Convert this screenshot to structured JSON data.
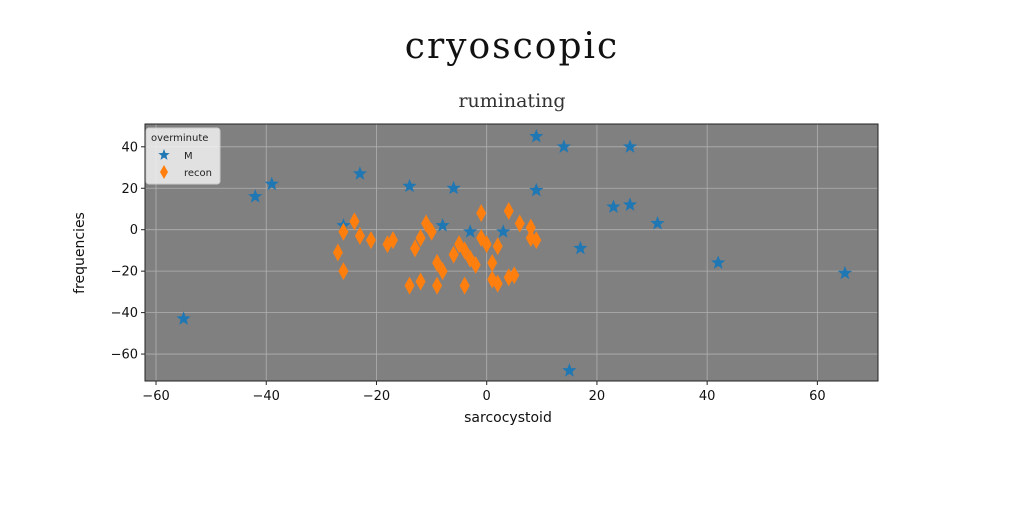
{
  "chart_data": {
    "type": "scatter",
    "suptitle": "cryoscopic",
    "title": "ruminating",
    "xlabel": "sarcocystoid",
    "ylabel": "frequencies",
    "xlim": [
      -62,
      71
    ],
    "ylim": [
      -73,
      51
    ],
    "xticks": [
      -60,
      -40,
      -20,
      0,
      20,
      40,
      60
    ],
    "yticks": [
      -60,
      -40,
      -20,
      0,
      20,
      40
    ],
    "grid": true,
    "legend": {
      "title": "overminute",
      "placement": "upper-left"
    },
    "colors": {
      "M": "#1f77b4",
      "recon": "#ff7f0e",
      "axes_bg": "#808080",
      "grid": "#b0b0b0"
    },
    "series": [
      {
        "name": "M",
        "marker": "star",
        "points": [
          [
            -55,
            -43
          ],
          [
            -42,
            16
          ],
          [
            -39,
            22
          ],
          [
            -23,
            27
          ],
          [
            -14,
            21
          ],
          [
            -6,
            20
          ],
          [
            -26,
            2
          ],
          [
            -8,
            2
          ],
          [
            -3,
            -1
          ],
          [
            3,
            -1
          ],
          [
            9,
            45
          ],
          [
            14,
            40
          ],
          [
            9,
            19
          ],
          [
            17,
            -9
          ],
          [
            23,
            11
          ],
          [
            26,
            12
          ],
          [
            26,
            40
          ],
          [
            31,
            3
          ],
          [
            42,
            -16
          ],
          [
            65,
            -21
          ],
          [
            15,
            -68
          ]
        ]
      },
      {
        "name": "recon",
        "marker": "thin_diamond",
        "points": [
          [
            -27,
            -11
          ],
          [
            -26,
            -20
          ],
          [
            -26,
            -1
          ],
          [
            -24,
            4
          ],
          [
            -23,
            -3
          ],
          [
            -21,
            -5
          ],
          [
            -18,
            -7
          ],
          [
            -17,
            -5
          ],
          [
            -14,
            -27
          ],
          [
            -13,
            -9
          ],
          [
            -12,
            -4
          ],
          [
            -12,
            -25
          ],
          [
            -11,
            3
          ],
          [
            -10,
            -1
          ],
          [
            -9,
            -16
          ],
          [
            -9,
            -27
          ],
          [
            -8,
            -20
          ],
          [
            -6,
            -12
          ],
          [
            -5,
            -7
          ],
          [
            -4,
            -10
          ],
          [
            -4,
            -27
          ],
          [
            -3,
            -14
          ],
          [
            -2,
            -17
          ],
          [
            -1,
            -4
          ],
          [
            -1,
            8
          ],
          [
            0,
            -7
          ],
          [
            1,
            -16
          ],
          [
            1,
            -24
          ],
          [
            2,
            -26
          ],
          [
            2,
            -8
          ],
          [
            4,
            -23
          ],
          [
            4,
            9
          ],
          [
            5,
            -22
          ],
          [
            6,
            3
          ],
          [
            8,
            1
          ],
          [
            8,
            -4
          ],
          [
            9,
            -5
          ]
        ]
      }
    ]
  }
}
